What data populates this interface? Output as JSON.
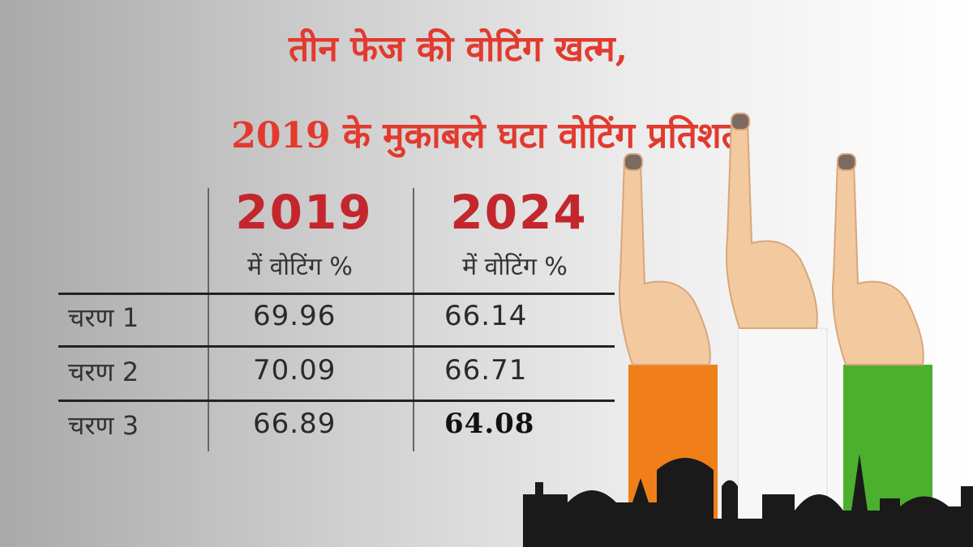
{
  "header": {
    "title_lines": [
      "तीन फेज की वोटिंग खत्म,",
      "2019 के मुकाबले घटा वोटिंग प्रतिशत"
    ]
  },
  "table": {
    "columns": [
      {
        "year": "2019",
        "subtitle": "में वोटिंग %"
      },
      {
        "year": "2024",
        "subtitle": "में वोटिंग %"
      }
    ],
    "rows": [
      [
        "चरण 1",
        "69.96",
        "66.14"
      ],
      [
        "चरण 2",
        "70.09",
        "66.71"
      ],
      [
        "चरण 3",
        "66.89",
        "64.08"
      ]
    ]
  }
}
